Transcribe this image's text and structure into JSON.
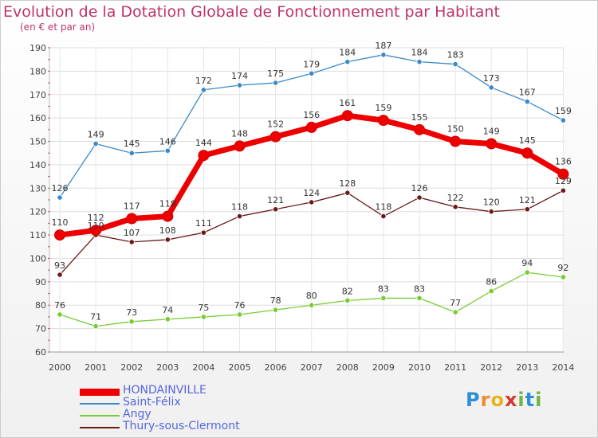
{
  "chart_data": {
    "type": "line",
    "title": "Evolution de la Dotation Globale de Fonctionnement par Habitant",
    "subtitle": "(en € et par an)",
    "x": [
      "2000",
      "2001",
      "2002",
      "2003",
      "2004",
      "2005",
      "2006",
      "2007",
      "2008",
      "2009",
      "2010",
      "2011",
      "2012",
      "2013",
      "2014"
    ],
    "y_ticks": [
      60,
      70,
      80,
      90,
      100,
      110,
      120,
      130,
      140,
      150,
      160,
      170,
      180,
      190
    ],
    "ylim": [
      60,
      190
    ],
    "grid": true,
    "legend_position": "bottom-left",
    "series": [
      {
        "name": "HONDAINVILLE",
        "color": "#ee0000",
        "values": [
          110,
          112,
          117,
          118,
          144,
          148,
          152,
          156,
          161,
          159,
          155,
          150,
          149,
          145,
          136
        ]
      },
      {
        "name": "Saint-Félix",
        "color": "#3a8ac8",
        "values": [
          126,
          149,
          145,
          146,
          172,
          174,
          175,
          179,
          184,
          187,
          184,
          183,
          173,
          167,
          159
        ]
      },
      {
        "name": "Angy",
        "color": "#77cc33",
        "values": [
          76,
          71,
          73,
          74,
          75,
          76,
          78,
          80,
          82,
          83,
          83,
          77,
          86,
          94,
          92
        ]
      },
      {
        "name": "Thury-sous-Clermont",
        "color": "#6b1a1a",
        "values": [
          93,
          110,
          107,
          108,
          111,
          118,
          121,
          124,
          128,
          118,
          126,
          122,
          120,
          121,
          129
        ]
      }
    ]
  },
  "brand": {
    "letters": [
      "P",
      "r",
      "o",
      "x",
      "i",
      "t",
      "i"
    ]
  }
}
